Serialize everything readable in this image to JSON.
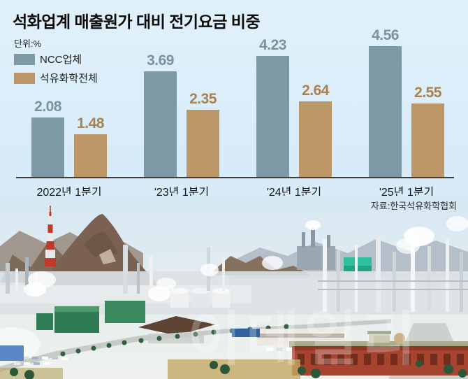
{
  "header": {
    "title": "석화업계 매출원가 대비 전기요금 비중",
    "unit_label": "단위:%"
  },
  "legend": {
    "items": [
      {
        "label": "NCC업체",
        "color": "#7d99a6"
      },
      {
        "label": "석유화학전체",
        "color": "#bc9766"
      }
    ]
  },
  "chart_data": {
    "type": "bar",
    "title": "석화업계 매출원가 대비 전기요금 비중",
    "unit": "%",
    "categories": [
      "2022년 1분기",
      "'23년 1분기",
      "'24년 1분기",
      "'25년 1분기"
    ],
    "series": [
      {
        "name": "NCC업체",
        "color": "#7d99a6",
        "label_color": "#78939f",
        "values": [
          2.08,
          3.69,
          4.23,
          4.56
        ]
      },
      {
        "name": "석유화학전체",
        "color": "#bc9766",
        "label_color": "#a9824e",
        "values": [
          1.48,
          2.35,
          2.64,
          2.55
        ]
      }
    ],
    "ylim": [
      0,
      5
    ],
    "grid": false,
    "legend_position": "top-left",
    "value_labels": true
  },
  "source": "자료:한국석유화학협회",
  "watermark": "이데일리",
  "colors": {
    "background": "#d8ecf8",
    "axis_line": "#3d3d3d",
    "ncc_bar": "#7d99a6",
    "petro_bar": "#bc9766",
    "ncc_value_text": "#78939f",
    "petro_value_text": "#a9824e"
  }
}
